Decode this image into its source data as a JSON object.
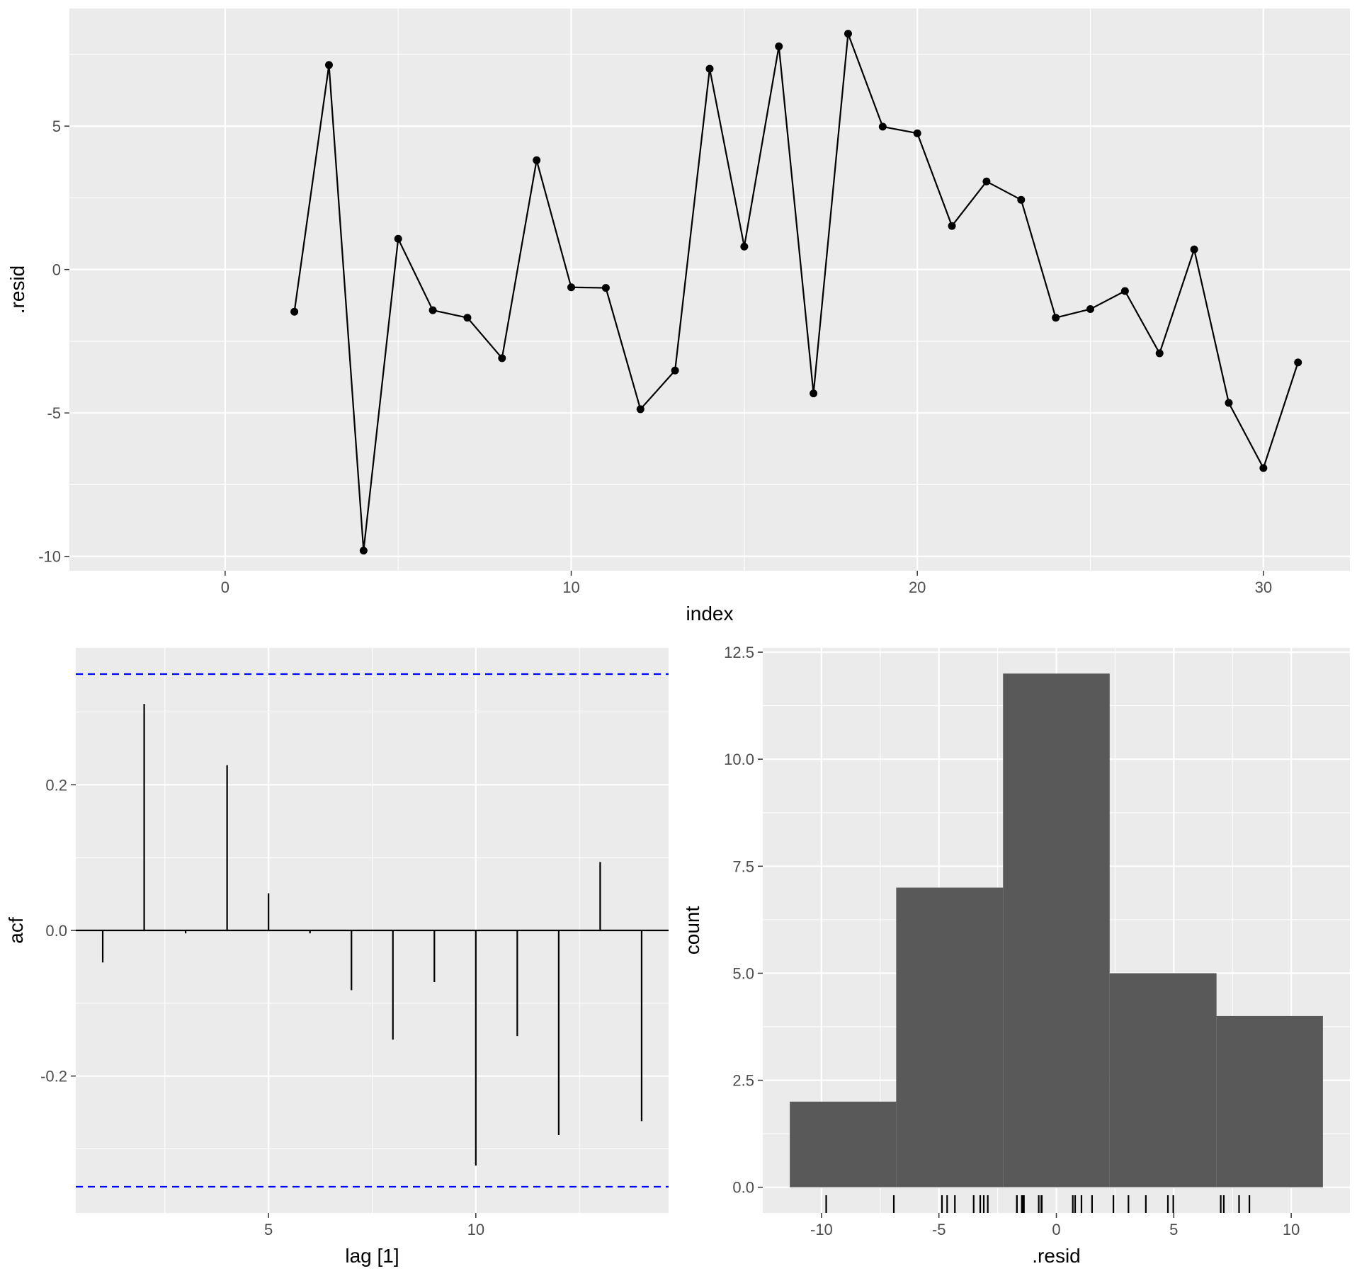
{
  "chart_data": [
    {
      "type": "line",
      "xlabel": "index",
      "ylabel": ".resid",
      "xlim": [
        -4.5,
        32.5
      ],
      "ylim": [
        -10.5,
        9.1
      ],
      "x_breaks": [
        0,
        10,
        20,
        30
      ],
      "y_breaks": [
        -10,
        -5,
        0,
        5
      ],
      "x_tick_labels": [
        "0",
        "10",
        "20",
        "30"
      ],
      "y_tick_labels": [
        "-10",
        "-5",
        "0",
        "5"
      ],
      "series": [
        {
          "x": [
            2,
            3,
            4,
            5,
            6,
            7,
            8,
            9,
            10,
            11,
            12,
            13,
            14,
            15,
            16,
            17,
            18,
            19,
            20,
            21,
            22,
            23,
            24,
            25,
            26,
            27,
            28,
            29,
            30,
            31
          ],
          "values": [
            -1.47,
            7.13,
            -9.8,
            1.07,
            -1.42,
            -1.68,
            -3.09,
            3.81,
            -0.62,
            -0.64,
            -4.87,
            -3.52,
            7.0,
            0.8,
            7.78,
            -4.32,
            8.22,
            4.98,
            4.75,
            1.52,
            3.07,
            2.43,
            -1.68,
            -1.38,
            -0.75,
            -2.92,
            0.7,
            -4.65,
            -6.92,
            -3.24
          ]
        }
      ],
      "colors": {
        "panel": "#ebebeb",
        "grid": "#ffffff",
        "line": "#000000",
        "point": "#000000"
      }
    },
    {
      "type": "bar",
      "xlabel": "lag [1]",
      "ylabel": "acf",
      "xlim": [
        0.35,
        14.65
      ],
      "ylim": [
        -0.388,
        0.388
      ],
      "x_breaks": [
        5,
        10
      ],
      "y_breaks": [
        -0.2,
        0.0,
        0.2
      ],
      "x_tick_labels": [
        "5",
        "10"
      ],
      "y_tick_labels": [
        "-0.2",
        "0.0",
        "0.2"
      ],
      "lags": [
        1,
        2,
        3,
        4,
        5,
        6,
        7,
        8,
        9,
        10,
        11,
        12,
        13,
        14
      ],
      "values": [
        -0.044,
        0.311,
        -0.004,
        0.227,
        0.051,
        -0.004,
        -0.082,
        -0.15,
        -0.071,
        -0.323,
        -0.145,
        -0.281,
        0.094,
        -0.262
      ],
      "confidence_bounds": [
        -0.352,
        0.352
      ],
      "colors": {
        "panel": "#ebebeb",
        "grid": "#ffffff",
        "spike": "#000000",
        "bounds": "#0000ff"
      }
    },
    {
      "type": "histogram",
      "xlabel": ".resid",
      "ylabel": "count",
      "xlim": [
        -12.5,
        12.5
      ],
      "ylim": [
        -0.6,
        12.6
      ],
      "x_breaks": [
        -10,
        -5,
        0,
        5,
        10
      ],
      "y_breaks": [
        0.0,
        2.5,
        5.0,
        7.5,
        10.0,
        12.5
      ],
      "x_tick_labels": [
        "-10",
        "-5",
        "0",
        "5",
        "10"
      ],
      "y_tick_labels": [
        "0.0",
        "2.5",
        "5.0",
        "7.5",
        "10.0",
        "12.5"
      ],
      "bins": [
        {
          "x0": -11.35,
          "x1": -6.82,
          "count": 2
        },
        {
          "x0": -6.82,
          "x1": -2.27,
          "count": 7
        },
        {
          "x0": -2.27,
          "x1": 2.27,
          "count": 12
        },
        {
          "x0": 2.27,
          "x1": 6.82,
          "count": 5
        },
        {
          "x0": 6.82,
          "x1": 11.35,
          "count": 4
        }
      ],
      "rug": [
        -9.8,
        -6.92,
        -4.87,
        -4.65,
        -4.32,
        -3.52,
        -3.24,
        -3.09,
        -2.92,
        -1.68,
        -1.68,
        -1.47,
        -1.42,
        -1.38,
        -0.75,
        -0.64,
        -0.62,
        0.7,
        0.8,
        1.07,
        1.52,
        2.43,
        3.07,
        3.81,
        4.75,
        4.98,
        7.0,
        7.13,
        7.78,
        8.22
      ],
      "colors": {
        "panel": "#ebebeb",
        "grid": "#ffffff",
        "bar": "#595959",
        "rug": "#000000"
      }
    }
  ]
}
